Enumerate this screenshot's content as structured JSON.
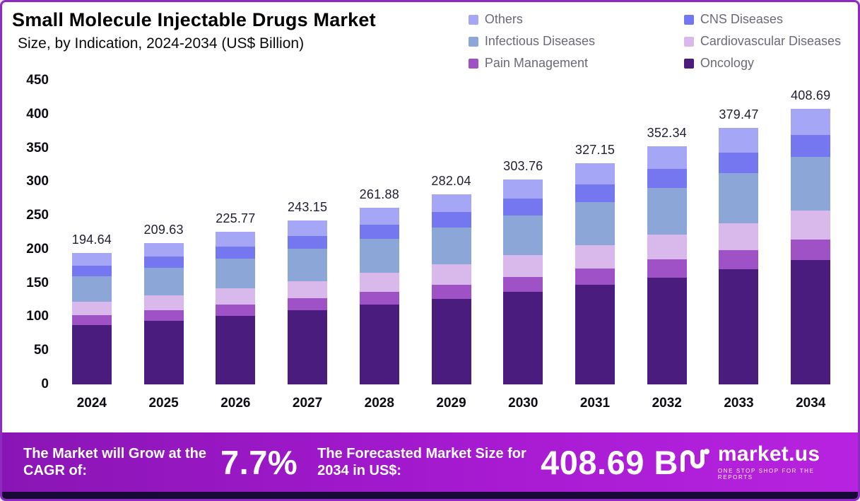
{
  "header": {
    "title": "Small Molecule Injectable Drugs Market",
    "subtitle": "Size, by Indication, 2024-2034 (US$ Billion)"
  },
  "legend": [
    {
      "label": "Others",
      "color": "#a5a6f6"
    },
    {
      "label": "CNS Diseases",
      "color": "#7477f0"
    },
    {
      "label": "Infectious Diseases",
      "color": "#8ba6d7"
    },
    {
      "label": "Cardiovascular Diseases",
      "color": "#d9b8ec"
    },
    {
      "label": "Pain Management",
      "color": "#9e52c5"
    },
    {
      "label": "Oncology",
      "color": "#4a1c7e"
    }
  ],
  "chart_data": {
    "type": "bar",
    "stacked": true,
    "title": "Small Molecule Injectable Drugs Market Size, by Indication, 2024-2034 (US$ Billion)",
    "xlabel": "",
    "ylabel": "US$ Billion",
    "ylim": [
      0,
      450
    ],
    "yticks": [
      0,
      50,
      100,
      150,
      200,
      250,
      300,
      350,
      400,
      450
    ],
    "grid": false,
    "legend_position": "top-right",
    "categories": [
      "2024",
      "2025",
      "2026",
      "2027",
      "2028",
      "2029",
      "2030",
      "2031",
      "2032",
      "2033",
      "2034"
    ],
    "totals": [
      194.64,
      209.63,
      225.77,
      243.15,
      261.88,
      282.04,
      303.76,
      327.15,
      352.34,
      379.47,
      408.69
    ],
    "series": [
      {
        "name": "Oncology",
        "color": "#4a1c7e",
        "values": [
          87.59,
          94.33,
          101.6,
          109.42,
          117.85,
          126.92,
          136.69,
          147.22,
          158.55,
          170.76,
          183.91
        ]
      },
      {
        "name": "Pain Management",
        "color": "#9e52c5",
        "values": [
          14.6,
          15.72,
          16.93,
          18.24,
          19.64,
          21.15,
          22.78,
          24.54,
          26.43,
          28.46,
          30.65
        ]
      },
      {
        "name": "Cardiovascular Diseases",
        "color": "#d9b8ec",
        "values": [
          20.44,
          22.01,
          23.71,
          25.53,
          27.5,
          29.61,
          31.89,
          34.35,
          37.0,
          39.84,
          42.91
        ]
      },
      {
        "name": "Infectious Diseases",
        "color": "#8ba6d7",
        "values": [
          37.95,
          40.88,
          44.03,
          47.41,
          51.07,
          55.0,
          59.23,
          63.79,
          68.71,
          74.0,
          79.69
        ]
      },
      {
        "name": "CNS Diseases",
        "color": "#7477f0",
        "values": [
          15.57,
          16.77,
          18.06,
          19.45,
          20.95,
          22.56,
          24.3,
          26.17,
          28.19,
          30.36,
          32.7
        ]
      },
      {
        "name": "Others",
        "color": "#a5a6f6",
        "values": [
          18.49,
          19.91,
          21.45,
          23.1,
          24.88,
          26.79,
          28.86,
          31.08,
          33.47,
          36.05,
          38.83
        ]
      }
    ]
  },
  "footer": {
    "cagr_label": "The Market will Grow at the CAGR of:",
    "cagr_value": "7.7%",
    "forecast_label": "The Forecasted Market Size for 2034 in US$:",
    "forecast_value": "408.69 B",
    "brand": "market.us",
    "brand_tagline": "ONE STOP SHOP FOR THE REPORTS"
  }
}
